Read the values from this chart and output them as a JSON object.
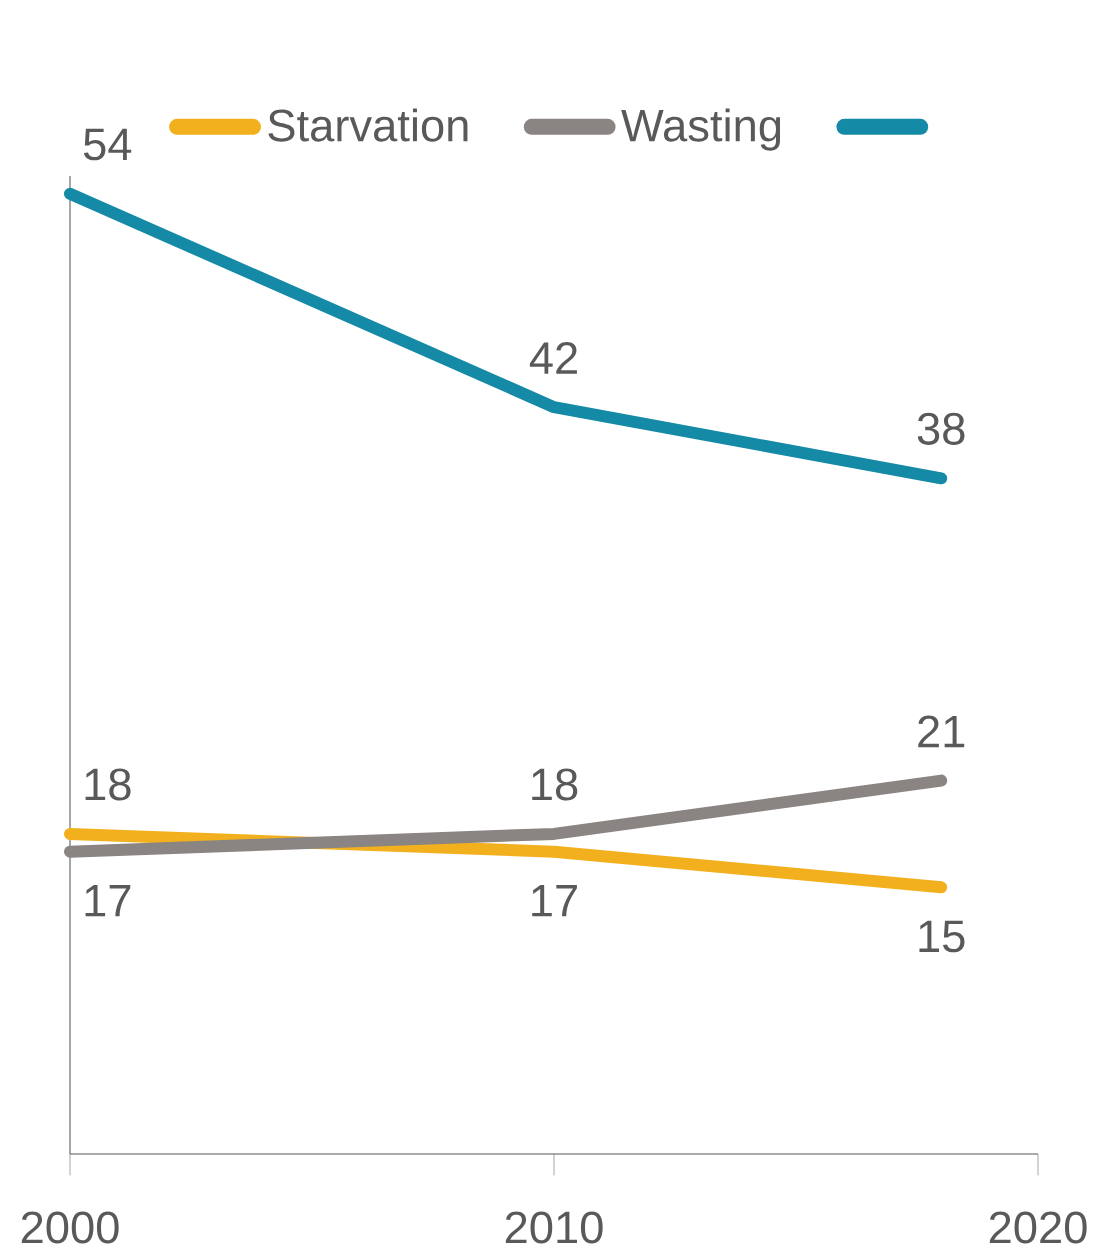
{
  "chart_data": {
    "type": "line",
    "x": [
      2000,
      2010,
      2018
    ],
    "series": [
      {
        "name": "Starvation",
        "color": "#f2b01e",
        "values": [
          18,
          17,
          15
        ]
      },
      {
        "name": "Wasting",
        "color": "#8a8482",
        "values": [
          17,
          18,
          21
        ]
      },
      {
        "color": "#148aa6",
        "values": [
          54,
          42,
          38
        ]
      }
    ],
    "xlim": [
      2000,
      2020
    ],
    "xticks": [
      2000,
      2010,
      2020
    ],
    "ylim": [
      0,
      55
    ],
    "tick_labels": "x",
    "data_labels": true,
    "legend": "top",
    "grid": false,
    "marker": "none",
    "line_style": "solid"
  }
}
